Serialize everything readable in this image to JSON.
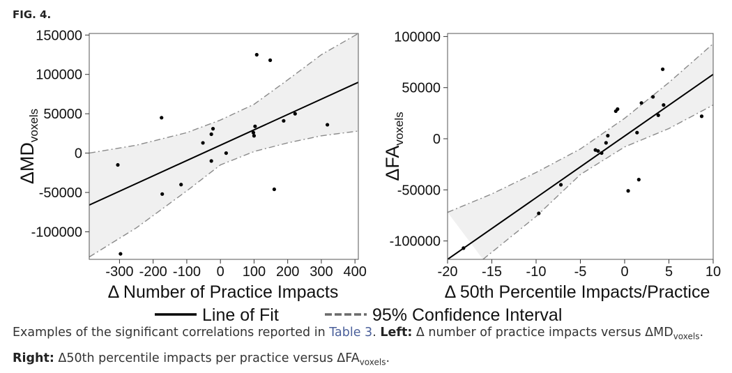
{
  "figure_label": "FIG. 4.",
  "chart_data": [
    {
      "type": "scatter",
      "xlabel": "Δ Number of Practice Impacts",
      "ylabel_main": "ΔMD",
      "ylabel_sub": "voxels",
      "xlim": [
        -390,
        410
      ],
      "ylim": [
        -135000,
        152000
      ],
      "xticks": [
        -300,
        -200,
        -100,
        0,
        100,
        200,
        300,
        400
      ],
      "yticks": [
        -100000,
        -50000,
        0,
        50000,
        100000,
        150000
      ],
      "points": [
        {
          "x": -305,
          "y": -15000
        },
        {
          "x": -297,
          "y": -128000
        },
        {
          "x": -175,
          "y": 45000
        },
        {
          "x": -173,
          "y": -52000
        },
        {
          "x": -117,
          "y": -40000
        },
        {
          "x": -52,
          "y": 13000
        },
        {
          "x": -27,
          "y": 24000
        },
        {
          "x": -22,
          "y": 31000
        },
        {
          "x": -27,
          "y": -10000
        },
        {
          "x": 17,
          "y": 0
        },
        {
          "x": 98,
          "y": 26000
        },
        {
          "x": 100,
          "y": 22000
        },
        {
          "x": 103,
          "y": 34000
        },
        {
          "x": 108,
          "y": 125000
        },
        {
          "x": 148,
          "y": 118000
        },
        {
          "x": 160,
          "y": -46000
        },
        {
          "x": 188,
          "y": 41000
        },
        {
          "x": 222,
          "y": 50000
        },
        {
          "x": 318,
          "y": 36000
        }
      ],
      "fit_line": [
        {
          "x": -390,
          "y": -66000
        },
        {
          "x": 410,
          "y": 90000
        }
      ],
      "ci_upper": [
        {
          "x": -390,
          "y": 0
        },
        {
          "x": -250,
          "y": 10000
        },
        {
          "x": -100,
          "y": 26000
        },
        {
          "x": 0,
          "y": 42000
        },
        {
          "x": 100,
          "y": 62000
        },
        {
          "x": 200,
          "y": 93000
        },
        {
          "x": 300,
          "y": 125000
        },
        {
          "x": 410,
          "y": 152000
        }
      ],
      "ci_lower": [
        {
          "x": -390,
          "y": -132000
        },
        {
          "x": -250,
          "y": -95000
        },
        {
          "x": -100,
          "y": -48000
        },
        {
          "x": 0,
          "y": -15000
        },
        {
          "x": 100,
          "y": 2000
        },
        {
          "x": 200,
          "y": 13000
        },
        {
          "x": 300,
          "y": 22000
        },
        {
          "x": 410,
          "y": 28000
        }
      ]
    },
    {
      "type": "scatter",
      "xlabel": "Δ 50th Percentile Impacts/Practice",
      "ylabel_main": "ΔFA",
      "ylabel_sub": "voxels",
      "xlim": [
        -20,
        10
      ],
      "ylim": [
        -118000,
        103000
      ],
      "xticks": [
        -20,
        -15,
        -10,
        -5,
        0,
        5,
        10
      ],
      "yticks": [
        -100000,
        -50000,
        0,
        50000,
        100000
      ],
      "points": [
        {
          "x": -18.2,
          "y": -107000
        },
        {
          "x": -9.7,
          "y": -73000
        },
        {
          "x": -7.2,
          "y": -45000
        },
        {
          "x": -3.3,
          "y": -11000
        },
        {
          "x": -3.0,
          "y": -12000
        },
        {
          "x": -2.6,
          "y": -14000
        },
        {
          "x": -2.1,
          "y": -4000
        },
        {
          "x": -1.9,
          "y": 3000
        },
        {
          "x": -1.0,
          "y": 27000
        },
        {
          "x": -0.8,
          "y": 29000
        },
        {
          "x": 0.4,
          "y": -51000
        },
        {
          "x": 1.4,
          "y": 6000
        },
        {
          "x": 1.6,
          "y": -40000
        },
        {
          "x": 1.9,
          "y": 35000
        },
        {
          "x": 3.2,
          "y": 41000
        },
        {
          "x": 3.8,
          "y": 23000
        },
        {
          "x": 4.3,
          "y": 68000
        },
        {
          "x": 4.4,
          "y": 33000
        },
        {
          "x": 8.7,
          "y": 22000
        }
      ],
      "fit_line": [
        {
          "x": -20,
          "y": -118000
        },
        {
          "x": 10,
          "y": 63000
        }
      ],
      "ci_upper": [
        {
          "x": -20,
          "y": -72000
        },
        {
          "x": -15,
          "y": -54000
        },
        {
          "x": -10,
          "y": -33000
        },
        {
          "x": -5,
          "y": -10000
        },
        {
          "x": 0,
          "y": 20000
        },
        {
          "x": 5,
          "y": 55000
        },
        {
          "x": 10,
          "y": 93000
        }
      ],
      "ci_lower": [
        {
          "x": -16,
          "y": -118000
        },
        {
          "x": -10,
          "y": -76000
        },
        {
          "x": -5,
          "y": -35000
        },
        {
          "x": 0,
          "y": -8000
        },
        {
          "x": 5,
          "y": 10000
        },
        {
          "x": 10,
          "y": 33000
        }
      ]
    }
  ],
  "legend": {
    "line_label": "Line of Fit",
    "ci_label": "95% Confidence Interval"
  },
  "caption": {
    "part1": "Examples of the significant correlations reported in ",
    "ref": "Table 3",
    "part2": ". ",
    "left_bold": "Left:",
    "left_text": " Δ number of practice impacts versus ΔMD",
    "left_sub": "voxels",
    "part3": ". ",
    "right_bold": "Right:",
    "right_text": " Δ50th percentile impacts per practice versus ΔFA",
    "right_sub": "voxels",
    "end": "."
  }
}
